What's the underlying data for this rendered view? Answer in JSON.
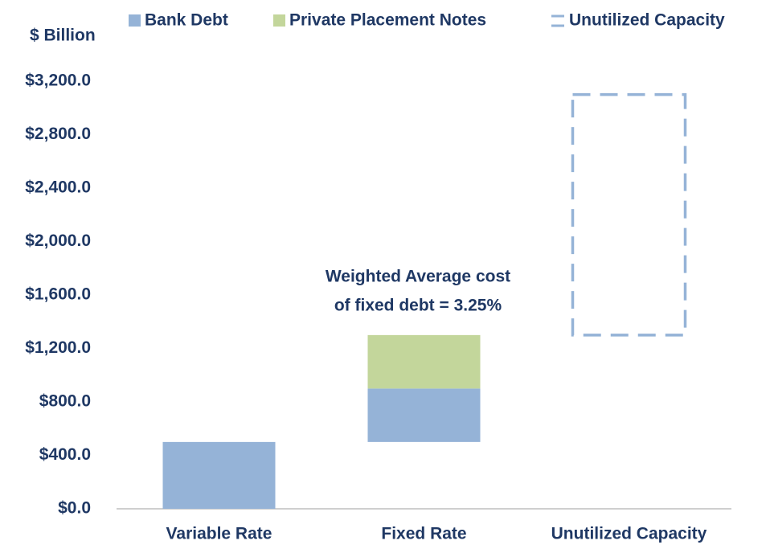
{
  "chart_data": {
    "type": "waterfall",
    "y_axis_label": "$ Billion",
    "categories": [
      "Variable Rate",
      "Fixed Rate",
      "Unutilized Capacity"
    ],
    "series": [
      {
        "name": "Bank Debt",
        "color": "#95b3d7",
        "style": "solid",
        "values": [
          500,
          400,
          null
        ]
      },
      {
        "name": "Private Placement Notes",
        "color": "#c3d69b",
        "style": "solid",
        "values": [
          null,
          400,
          null
        ]
      },
      {
        "name": "Unutilized Capacity",
        "color": "#95b3d7",
        "style": "dashed",
        "values": [
          null,
          null,
          1800
        ]
      }
    ],
    "annotation": [
      "Weighted Average cost",
      "of fixed debt = 3.25%"
    ],
    "ylim": [
      0,
      3200
    ],
    "yticks": [
      {
        "value": 0,
        "label": "$0.0"
      },
      {
        "value": 400,
        "label": "$400.0"
      },
      {
        "value": 800,
        "label": "$800.0"
      },
      {
        "value": 1200,
        "label": "$1,200.0"
      },
      {
        "value": 1600,
        "label": "$1,600.0"
      },
      {
        "value": 2000,
        "label": "$2,000.0"
      },
      {
        "value": 2400,
        "label": "$2,400.0"
      },
      {
        "value": 2800,
        "label": "$2,800.0"
      },
      {
        "value": 3200,
        "label": "$3,200.0"
      }
    ],
    "legend": "top"
  }
}
